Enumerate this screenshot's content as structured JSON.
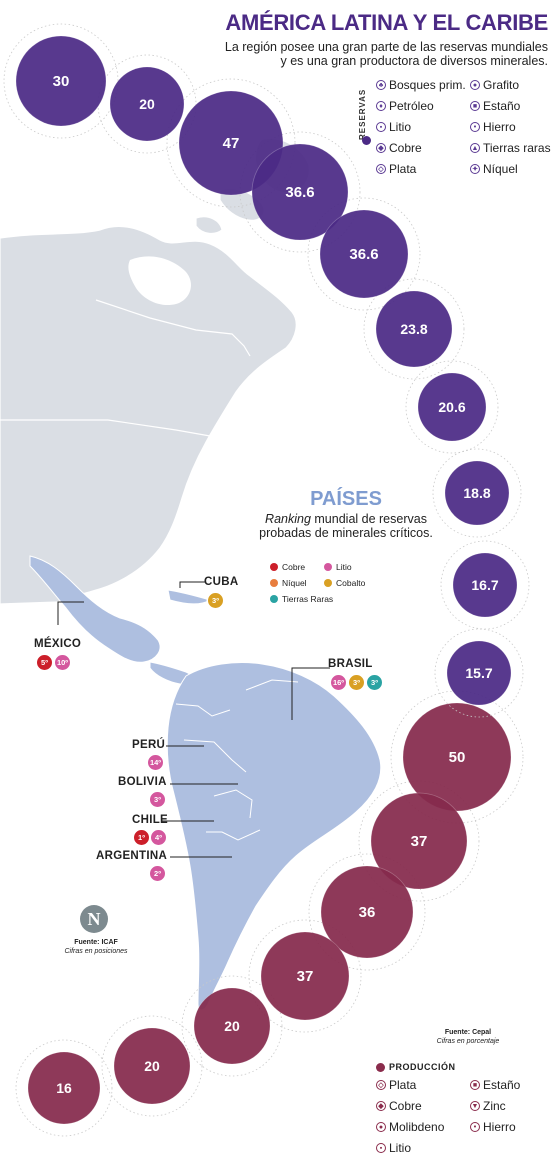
{
  "header": {
    "title": "AMÉRICA LATINA Y EL CARIBE",
    "subtitle": "La región posee una gran parte de las reservas mundiales y es una gran productora de diversos minerales."
  },
  "reserves_legend": {
    "heading": "RESERVAS",
    "items": [
      "Bosques prim.",
      "Grafito",
      "Petróleo",
      "Estaño",
      "Litio",
      "Hierro",
      "Cobre",
      "Tierras raras",
      "Plata",
      "Níquel"
    ]
  },
  "reserve_bubbles": [
    "30",
    "20",
    "47",
    "36.6",
    "36.6",
    "23.8",
    "20.6",
    "18.8",
    "16.7",
    "15.7"
  ],
  "production_bubbles": [
    "50",
    "37",
    "36",
    "37",
    "20",
    "20",
    "16"
  ],
  "paises": {
    "title": "PAÍSES",
    "subtitle_italic": "Ranking",
    "subtitle_rest": " mundial de reservas probadas de minerales críticos.",
    "legend": [
      {
        "label": "Cobre",
        "color": "#cc1f2a"
      },
      {
        "label": "Litio",
        "color": "#d4579e"
      },
      {
        "label": "Níquel",
        "color": "#e87d3e"
      },
      {
        "label": "Cobalto",
        "color": "#d9a023"
      },
      {
        "label": "Tierras Raras",
        "color": "#2aa3a3"
      }
    ]
  },
  "countries": {
    "cuba": {
      "name": "CUBA",
      "badges": [
        "3º"
      ]
    },
    "mexico": {
      "name": "MÉXICO",
      "badges": [
        "5º",
        "10º"
      ]
    },
    "brasil": {
      "name": "BRASIL",
      "badges": [
        "16º",
        "3º",
        "3º"
      ]
    },
    "peru": {
      "name": "PERÚ",
      "badges": [
        "14º"
      ]
    },
    "bolivia": {
      "name": "BOLIVIA",
      "badges": [
        "3º"
      ]
    },
    "chile": {
      "name": "CHILE",
      "badges": [
        "1º",
        "4º"
      ]
    },
    "argentina": {
      "name": "ARGENTINA",
      "badges": [
        "2º"
      ]
    }
  },
  "source_left": {
    "line1": "Fuente: ICAF",
    "line2": "Cifras en posiciones"
  },
  "source_right": {
    "line1": "Fuente: Cepal",
    "line2": "Cifras en porcentaje"
  },
  "logo_letter": "N",
  "production_legend": {
    "heading": "PRODUCCIÓN",
    "items": [
      "Plata",
      "Estaño",
      "Cobre",
      "Zinc",
      "Molibdeno",
      "Hierro",
      "Litio"
    ]
  },
  "colors": {
    "reserves": "#4b2a85",
    "production": "#852a4c",
    "land": "#d9dde3",
    "latam": "#aebfe0"
  }
}
